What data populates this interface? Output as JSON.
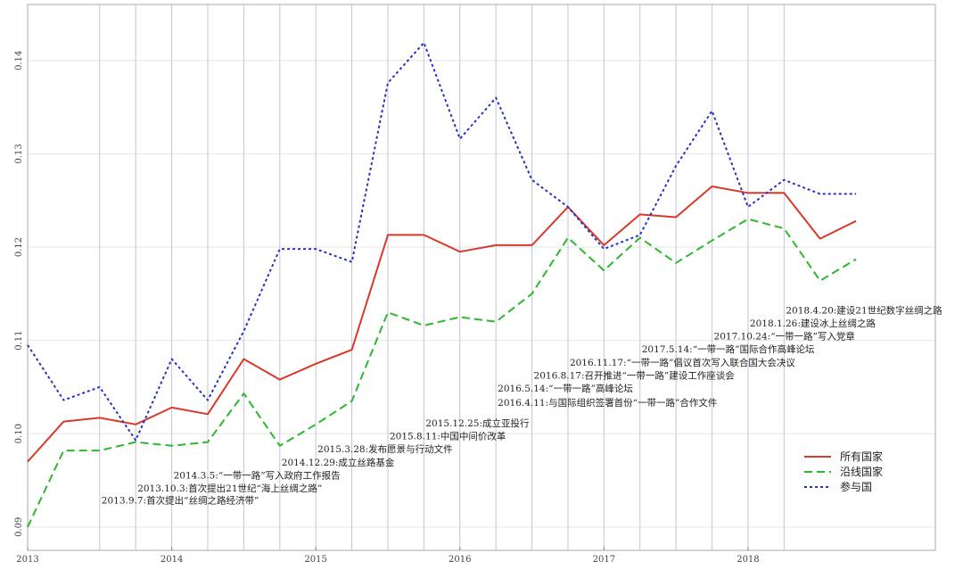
{
  "chart_data": {
    "type": "line",
    "title": "",
    "xlabel": "",
    "ylabel": "",
    "xlim": [
      2013.0,
      2019.3
    ],
    "ylim": [
      0.0875,
      0.146
    ],
    "x": [
      2013.0,
      2013.25,
      2013.5,
      2013.75,
      2014.0,
      2014.25,
      2014.5,
      2014.75,
      2015.0,
      2015.25,
      2015.5,
      2015.75,
      2016.0,
      2016.25,
      2016.5,
      2016.75,
      2017.0,
      2017.25,
      2017.5,
      2017.75,
      2018.0,
      2018.25,
      2018.5,
      2018.75
    ],
    "series": [
      {
        "name": "所有国家",
        "color": "#d9392b",
        "dash": "solid",
        "values": [
          0.097,
          0.1013,
          0.1017,
          0.101,
          0.1028,
          0.1021,
          0.108,
          0.1058,
          0.1075,
          0.109,
          0.1213,
          0.1213,
          0.1195,
          0.1202,
          0.1202,
          0.1243,
          0.1202,
          0.1235,
          0.1232,
          0.1265,
          0.1258,
          0.1258,
          0.1209,
          0.1228
        ]
      },
      {
        "name": "沿线国家",
        "color": "#2db82d",
        "dash": "dashed",
        "values": [
          0.09,
          0.0982,
          0.0982,
          0.0991,
          0.0987,
          0.0991,
          0.1043,
          0.0987,
          0.101,
          0.1035,
          0.113,
          0.1116,
          0.1125,
          0.112,
          0.115,
          0.121,
          0.1175,
          0.121,
          0.1183,
          0.1207,
          0.123,
          0.122,
          0.1164,
          0.1187
        ]
      },
      {
        "name": "参与国",
        "color": "#2633c4",
        "dash": "dotted",
        "values": [
          0.1095,
          0.1036,
          0.105,
          0.0993,
          0.108,
          0.1036,
          0.111,
          0.1198,
          0.1198,
          0.1184,
          0.1376,
          0.1419,
          0.1316,
          0.136,
          0.1272,
          0.1243,
          0.1198,
          0.1213,
          0.1287,
          0.1346,
          0.1243,
          0.1272,
          0.1257,
          0.1257
        ]
      }
    ],
    "x_ticks": [
      {
        "value": 2013,
        "label": "2013"
      },
      {
        "value": 2014,
        "label": "2014"
      },
      {
        "value": 2015,
        "label": "2015"
      },
      {
        "value": 2016,
        "label": "2016"
      },
      {
        "value": 2017,
        "label": "2017"
      },
      {
        "value": 2018,
        "label": "2018"
      }
    ],
    "y_ticks": [
      {
        "value": 0.09,
        "label": "0.09"
      },
      {
        "value": 0.1,
        "label": "0.10"
      },
      {
        "value": 0.11,
        "label": "0.11"
      },
      {
        "value": 0.12,
        "label": "0.12"
      },
      {
        "value": 0.13,
        "label": "0.13"
      },
      {
        "value": 0.14,
        "label": "0.14"
      }
    ],
    "event_lines": [
      2013.5,
      2013.75,
      2014.0,
      2014.25,
      2014.5,
      2014.75,
      2015.0,
      2015.25,
      2015.5,
      2015.75,
      2016.0,
      2016.25,
      2016.5,
      2016.75,
      2017.0,
      2017.25,
      2017.5,
      2017.75,
      2018.0,
      2018.25
    ],
    "annotations": [
      {
        "x": 2013.5,
        "y": 0.0925,
        "text": "2013.9.7:首次提出“丝绸之路经济带”"
      },
      {
        "x": 2013.75,
        "y": 0.0938,
        "text": "2013.10.3:首次提出21世纪“海上丝绸之路”"
      },
      {
        "x": 2014.0,
        "y": 0.0952,
        "text": "2014.3.5:“一带一路”写入政府工作报告"
      },
      {
        "x": 2014.75,
        "y": 0.0966,
        "text": "2014.12.29:成立丝路基金"
      },
      {
        "x": 2015.0,
        "y": 0.098,
        "text": "2015.3.28:发布愿景与行动文件"
      },
      {
        "x": 2015.5,
        "y": 0.0994,
        "text": "2015.8.11:中国中间价改革"
      },
      {
        "x": 2015.75,
        "y": 0.1008,
        "text": "2015.12.25:成立亚投行"
      },
      {
        "x": 2016.25,
        "y": 0.103,
        "text": "2016.4.11:与国际组织签署首份“一带一路”合作文件"
      },
      {
        "x": 2016.25,
        "y": 0.1045,
        "text": "2016.5.14:“一带一路”高峰论坛"
      },
      {
        "x": 2016.5,
        "y": 0.1059,
        "text": "2016.8.17:召开推进“一带一路”建设工作座谈会"
      },
      {
        "x": 2016.75,
        "y": 0.1073,
        "text": "2016.11.17:“一带一路”倡议首次写入联合国大会决议"
      },
      {
        "x": 2017.25,
        "y": 0.1087,
        "text": "2017.5.14:“一带一路”国际合作高峰论坛"
      },
      {
        "x": 2017.75,
        "y": 0.1101,
        "text": "2017.10.24:“一带一路”写入党章"
      },
      {
        "x": 2018.0,
        "y": 0.1115,
        "text": "2018.1.26:建设冰上丝绸之路"
      },
      {
        "x": 2018.25,
        "y": 0.1129,
        "text": "2018.4.20:建设21世纪数字丝绸之路"
      }
    ],
    "grid": true,
    "legend_position": "lower-right"
  }
}
